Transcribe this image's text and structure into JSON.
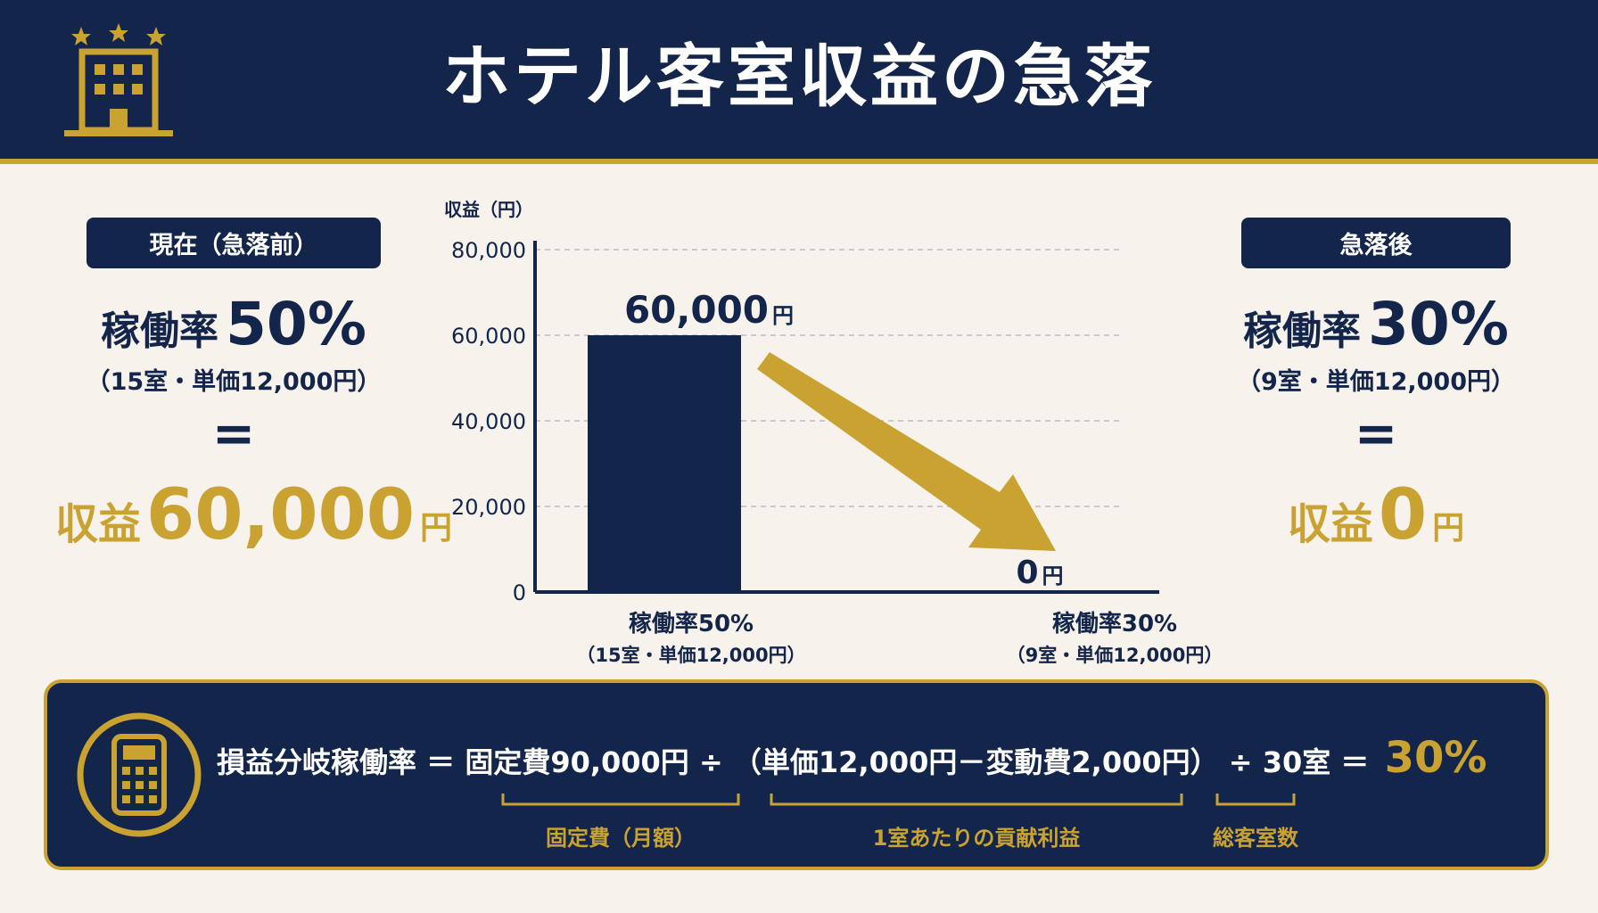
{
  "header": {
    "title": "ホテル客室収益の急落"
  },
  "left_panel": {
    "badge": "現在（急落前）",
    "rate_label": "稼働率",
    "rate_value": "50%",
    "detail": "（15室・単価12,000円）",
    "equals": "=",
    "revenue_label": "収益",
    "revenue_value": "60,000",
    "revenue_unit": "円"
  },
  "right_panel": {
    "badge": "急落後",
    "rate_label": "稼働率",
    "rate_value": "30%",
    "detail": "（9室・単価12,000円）",
    "equals": "=",
    "revenue_label": "収益",
    "revenue_value": "0",
    "revenue_unit": "円"
  },
  "chart_data": {
    "type": "bar",
    "ylabel": "収益（円）",
    "ylim": [
      0,
      80000
    ],
    "yticks": [
      0,
      20000,
      40000,
      60000,
      80000
    ],
    "ytick_labels": [
      "0",
      "20,000",
      "40,000",
      "60,000",
      "80,000"
    ],
    "grid": true,
    "categories": [
      {
        "label": "稼働率50%",
        "sublabel": "（15室・単価12,000円）"
      },
      {
        "label": "稼働率30%",
        "sublabel": "（9室・単価12,000円）"
      }
    ],
    "values": [
      60000,
      0
    ],
    "data_labels": [
      {
        "value": "60,000",
        "unit": "円"
      },
      {
        "value": "0",
        "unit": "円"
      }
    ],
    "annotation": "arrow-from-bar1-to-bar2",
    "colors": {
      "bar": "#13254a",
      "arrow": "#c9a232",
      "grid": "#bbbbbb"
    }
  },
  "formula": {
    "parts": [
      "損益分岐稼働率",
      "＝",
      "固定費90,000円",
      "÷",
      "（単価12,000円－変動費2,000円）",
      "÷",
      "30室",
      "＝"
    ],
    "result": "30%",
    "labels": [
      "固定費（月額）",
      "1室あたりの貢献利益",
      "総客室数"
    ]
  },
  "colors": {
    "navy": "#13254a",
    "gold": "#c9a232",
    "background": "#f7f3ec"
  }
}
